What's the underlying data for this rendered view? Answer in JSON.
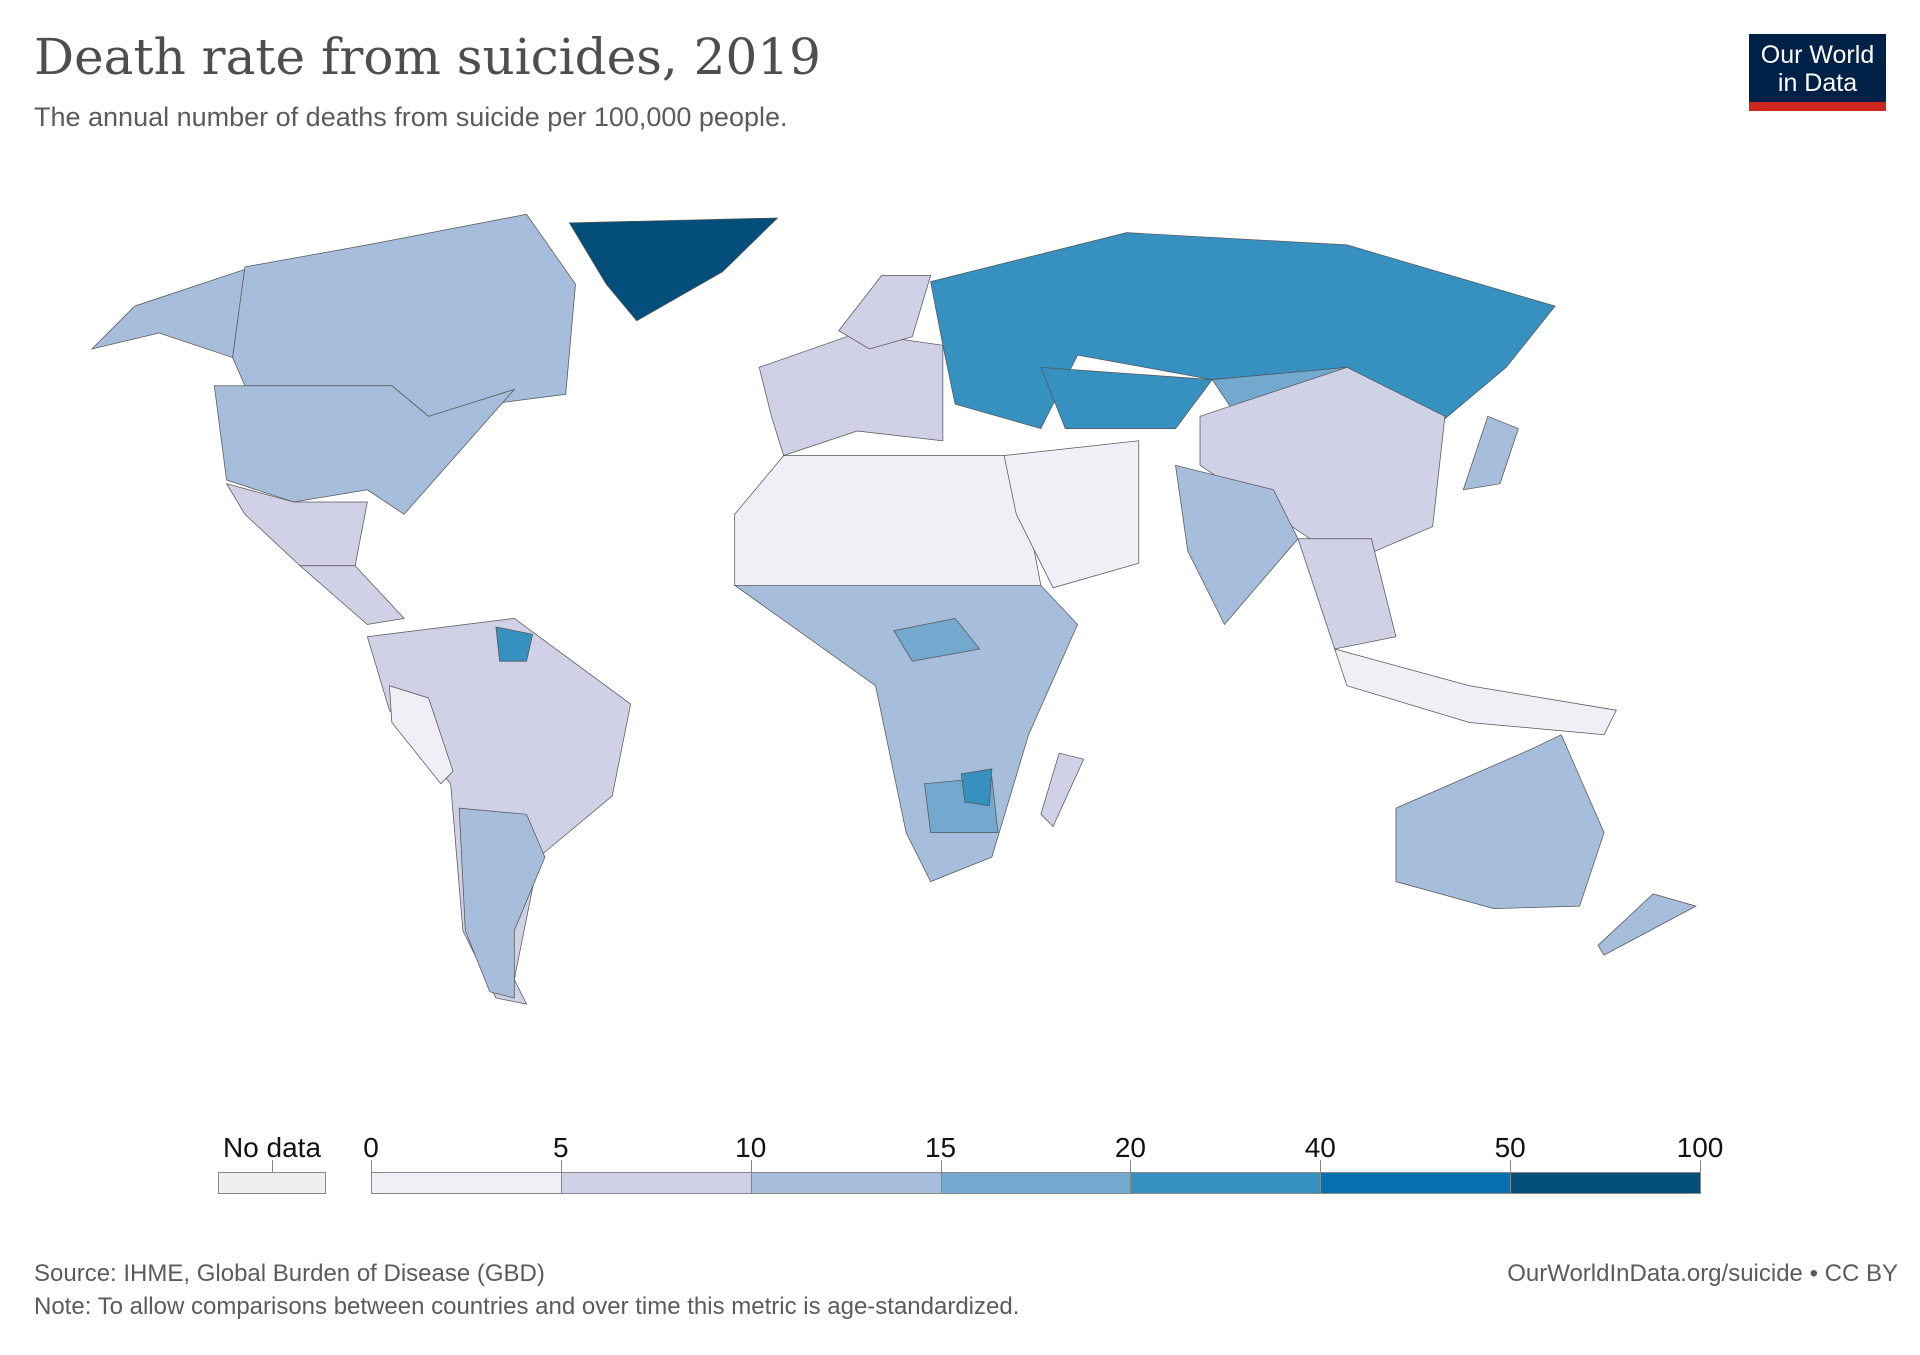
{
  "header": {
    "title": "Death rate from suicides, 2019",
    "subtitle": "The annual number of deaths from suicide per 100,000 people.",
    "logo_line1": "Our World",
    "logo_line2": "in Data"
  },
  "chart_data": {
    "type": "choropleth",
    "title": "Death rate from suicides, 2019",
    "year": 2019,
    "legend": {
      "no_data_label": "No data",
      "no_data_color": "#efefef",
      "breaks": [
        "0",
        "5",
        "10",
        "15",
        "20",
        "40",
        "50",
        "100"
      ],
      "colors": [
        "#f1eef6",
        "#d0d1e6",
        "#a6bddb",
        "#74a9cf",
        "#3690c0",
        "#0570b0",
        "#034e7b"
      ]
    }
  },
  "footer": {
    "source": "Source: IHME, Global Burden of Disease (GBD)",
    "note": "Note: To allow comparisons between countries and over time this metric is age-standardized.",
    "link": "OurWorldInData.org/suicide • CC BY"
  }
}
